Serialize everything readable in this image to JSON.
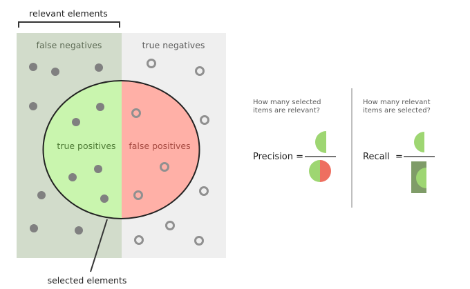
{
  "labels": {
    "relevant_elements": "relevant elements",
    "selected_elements": "selected elements",
    "false_negatives": "false negatives",
    "true_negatives": "true negatives",
    "true_positives": "true positives",
    "false_positives": "false positives"
  },
  "precision": {
    "question_line1": "How many selected",
    "question_line2": "items are relevant?",
    "formula_label": "Precision ="
  },
  "recall": {
    "question_line1": "How many relevant",
    "question_line2": "items are selected?",
    "formula_label": "Recall  ="
  },
  "colors": {
    "relevant_region": "#d2dccb",
    "irrelevant_region": "#efefef",
    "true_positive": "#c9f5ae",
    "false_positive": "#ffb0a7",
    "relevant_dot": "#808080",
    "irrelevant_ring": "#909090",
    "icon_green": "#9ed672",
    "icon_red": "#ee6f60",
    "icon_dark_green": "#7f9c68",
    "divider": "#aaaaaa"
  },
  "counts": {
    "false_negatives": 8,
    "true_negatives": 8,
    "true_positives": 5,
    "false_positives": 3
  }
}
